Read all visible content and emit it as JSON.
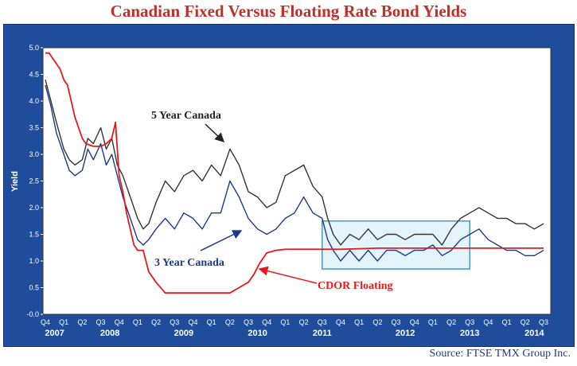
{
  "chart_data": {
    "type": "line",
    "title": "Canadian Fixed Versus Floating Rate Bond Yields",
    "source": "Source: FTSE TMX Group Inc.",
    "ylabel": "Yield",
    "xlabel": "",
    "ylim": [
      -0.0,
      5.0
    ],
    "yticks": [
      "5.0",
      "4.5",
      "4.0",
      "3.5",
      "3.0",
      "2.5",
      "2.0",
      "1.5",
      "1.0",
      "0.5",
      "-0.0"
    ],
    "quarter_ticks": [
      "Q4",
      "Q1",
      "Q2",
      "Q3",
      "Q4",
      "Q1",
      "Q2",
      "Q3",
      "Q4",
      "Q1",
      "Q2",
      "Q3",
      "Q4",
      "Q1",
      "Q2",
      "Q3",
      "Q4",
      "Q1",
      "Q2",
      "Q3",
      "Q4",
      "Q1",
      "Q2",
      "Q3",
      "Q4",
      "Q1",
      "Q2",
      "Q3"
    ],
    "year_labels": [
      {
        "label": "2007",
        "tick_index": 0.5
      },
      {
        "label": "2008",
        "tick_index": 3.5
      },
      {
        "label": "2009",
        "tick_index": 7.5
      },
      {
        "label": "2010",
        "tick_index": 11.5
      },
      {
        "label": "2011",
        "tick_index": 15
      },
      {
        "label": "2012",
        "tick_index": 19.5
      },
      {
        "label": "2013",
        "tick_index": 23
      },
      {
        "label": "2014",
        "tick_index": 26.5
      }
    ],
    "series": [
      {
        "name": "5 Year Canada",
        "color": "#333333",
        "x": [
          0.0,
          0.3,
          0.6,
          1.0,
          1.3,
          1.6,
          2.0,
          2.3,
          2.6,
          3.0,
          3.3,
          3.6,
          3.9,
          4.2,
          4.6,
          5.0,
          5.3,
          5.6,
          6.0,
          6.5,
          7.0,
          7.5,
          8.0,
          8.5,
          9.0,
          9.5,
          10.0,
          10.5,
          11.0,
          11.5,
          12.0,
          12.5,
          13.0,
          13.5,
          14.0,
          14.5,
          15.0,
          15.3,
          15.6,
          16.0,
          16.5,
          17.0,
          17.5,
          18.0,
          18.5,
          19.0,
          19.5,
          20.0,
          20.5,
          21.0,
          21.5,
          22.0,
          22.5,
          23.0,
          23.5,
          24.0,
          24.5,
          25.0,
          25.5,
          26.0,
          26.5,
          27.0
        ],
        "values": [
          4.4,
          4.0,
          3.6,
          3.1,
          2.9,
          2.8,
          2.9,
          3.3,
          3.2,
          3.5,
          3.1,
          3.3,
          2.8,
          2.6,
          2.2,
          1.8,
          1.6,
          1.7,
          2.1,
          2.5,
          2.3,
          2.6,
          2.7,
          2.5,
          2.8,
          2.6,
          3.1,
          2.8,
          2.3,
          2.2,
          2.0,
          2.1,
          2.6,
          2.7,
          2.8,
          2.4,
          2.2,
          1.8,
          1.5,
          1.3,
          1.5,
          1.4,
          1.6,
          1.4,
          1.5,
          1.5,
          1.4,
          1.5,
          1.5,
          1.5,
          1.3,
          1.6,
          1.8,
          1.9,
          2.0,
          1.9,
          1.8,
          1.8,
          1.7,
          1.7,
          1.6,
          1.7
        ]
      },
      {
        "name": "3 Year Canada",
        "color": "#1a3a8c",
        "x": [
          0.0,
          0.3,
          0.6,
          1.0,
          1.3,
          1.6,
          2.0,
          2.3,
          2.6,
          3.0,
          3.3,
          3.6,
          3.9,
          4.2,
          4.6,
          5.0,
          5.3,
          5.6,
          6.0,
          6.5,
          7.0,
          7.5,
          8.0,
          8.5,
          9.0,
          9.5,
          10.0,
          10.5,
          11.0,
          11.5,
          12.0,
          12.5,
          13.0,
          13.5,
          14.0,
          14.5,
          15.0,
          15.3,
          15.6,
          16.0,
          16.5,
          17.0,
          17.5,
          18.0,
          18.5,
          19.0,
          19.5,
          20.0,
          20.5,
          21.0,
          21.5,
          22.0,
          22.5,
          23.0,
          23.5,
          24.0,
          24.5,
          25.0,
          25.5,
          26.0,
          26.5,
          27.0
        ],
        "values": [
          4.3,
          3.9,
          3.4,
          3.0,
          2.7,
          2.6,
          2.7,
          3.1,
          2.9,
          3.2,
          2.8,
          3.0,
          2.6,
          2.2,
          1.8,
          1.4,
          1.3,
          1.4,
          1.6,
          1.8,
          1.6,
          1.9,
          1.8,
          1.6,
          1.9,
          1.9,
          2.5,
          2.2,
          1.8,
          1.6,
          1.5,
          1.6,
          1.8,
          1.9,
          2.2,
          1.9,
          1.8,
          1.4,
          1.2,
          1.0,
          1.2,
          1.0,
          1.2,
          1.0,
          1.2,
          1.2,
          1.1,
          1.2,
          1.2,
          1.3,
          1.1,
          1.2,
          1.4,
          1.5,
          1.6,
          1.4,
          1.3,
          1.2,
          1.2,
          1.1,
          1.1,
          1.2
        ]
      },
      {
        "name": "CDOR Floating",
        "color": "#e8191b",
        "x": [
          0.0,
          0.2,
          0.4,
          0.6,
          0.8,
          1.0,
          1.2,
          1.4,
          1.6,
          1.8,
          2.0,
          2.2,
          2.6,
          3.0,
          3.3,
          3.6,
          3.8,
          3.9,
          4.0,
          4.2,
          4.4,
          4.6,
          4.8,
          5.0,
          5.3,
          5.6,
          6.0,
          6.5,
          7.0,
          8.0,
          9.0,
          10.0,
          10.5,
          11.0,
          11.3,
          11.6,
          12.0,
          12.5,
          13.0,
          14.0,
          15.0,
          16.0,
          17.0,
          18.0,
          19.0,
          20.0,
          21.0,
          22.0,
          23.0,
          24.0,
          25.0,
          26.0,
          27.0
        ],
        "values": [
          4.9,
          4.9,
          4.8,
          4.7,
          4.6,
          4.4,
          4.3,
          4.0,
          3.7,
          3.5,
          3.3,
          3.2,
          3.15,
          3.15,
          3.2,
          3.3,
          3.6,
          3.1,
          2.6,
          2.3,
          1.9,
          1.6,
          1.3,
          1.2,
          1.2,
          0.8,
          0.6,
          0.4,
          0.4,
          0.4,
          0.4,
          0.4,
          0.5,
          0.6,
          0.75,
          0.95,
          1.15,
          1.2,
          1.22,
          1.22,
          1.22,
          1.22,
          1.23,
          1.24,
          1.24,
          1.24,
          1.24,
          1.24,
          1.24,
          1.24,
          1.24,
          1.24,
          1.24
        ]
      }
    ],
    "annotations": [
      {
        "text": "5 Year Canada",
        "color": "#222222"
      },
      {
        "text": "3 Year Canada",
        "color": "#1a3a8c"
      },
      {
        "text": "CDOR Floating",
        "color": "#e8191b"
      }
    ],
    "highlight_box": {
      "x0": 15.0,
      "x1": 23.0,
      "y0": 0.85,
      "y1": 1.75,
      "fill": "#e3f4fb",
      "stroke": "#4a9ab5"
    },
    "grid": false,
    "legend": "none"
  }
}
